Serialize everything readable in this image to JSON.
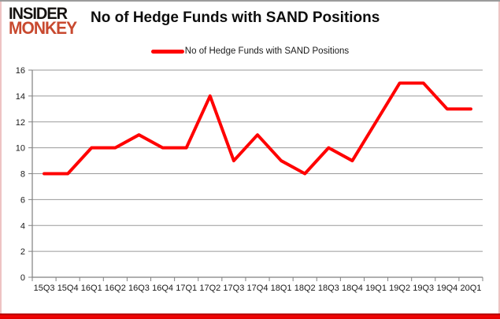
{
  "logo": {
    "line1": "INSIDER",
    "line2": "MONKEY"
  },
  "title": "No of Hedge Funds with SAND Positions",
  "legend": {
    "label": "No of Hedge Funds with SAND Positions"
  },
  "chart_data": {
    "type": "line",
    "title": "No of Hedge Funds with SAND Positions",
    "categories": [
      "15Q3",
      "15Q4",
      "16Q1",
      "16Q2",
      "16Q3",
      "16Q4",
      "17Q1",
      "17Q2",
      "17Q3",
      "17Q4",
      "18Q1",
      "18Q2",
      "18Q3",
      "18Q4",
      "19Q1",
      "19Q2",
      "19Q3",
      "19Q4",
      "20Q1"
    ],
    "series": [
      {
        "name": "No of Hedge Funds with SAND Positions",
        "color": "#ff0000",
        "values": [
          8,
          8,
          10,
          10,
          11,
          10,
          10,
          14,
          9,
          11,
          9,
          8,
          10,
          9,
          12,
          15,
          15,
          13,
          13
        ]
      }
    ],
    "xlabel": "",
    "ylabel": "",
    "ylim": [
      0,
      16
    ],
    "ytick_step": 2,
    "yticks": [
      0,
      2,
      4,
      6,
      8,
      10,
      12,
      14,
      16
    ],
    "grid": true,
    "legend_position": "top-center"
  },
  "colors": {
    "series_red": "#ff0000",
    "logo_black": "#161311",
    "logo_red": "#c8492f",
    "gridline": "#9a9a9a",
    "axis": "#808080",
    "frame_top": "#9b9b9b",
    "frame_sides": "#eec3c3",
    "bottom_bar": "#f50505",
    "background": "#ffffff"
  }
}
